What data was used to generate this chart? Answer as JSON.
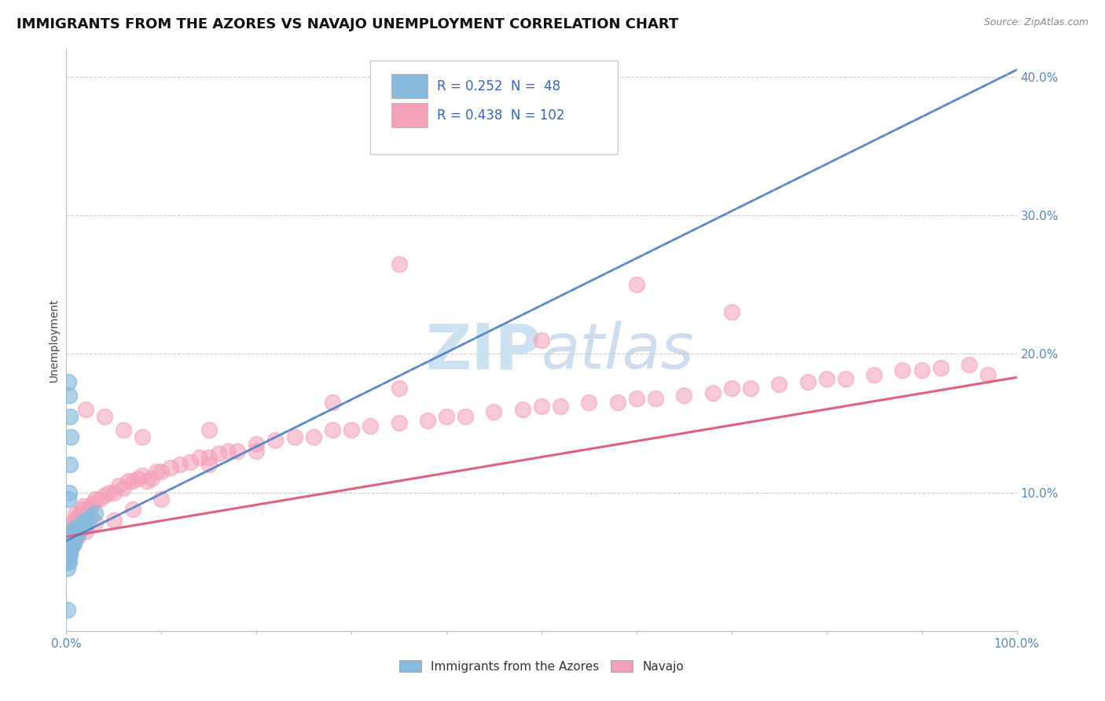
{
  "title": "IMMIGRANTS FROM THE AZORES VS NAVAJO UNEMPLOYMENT CORRELATION CHART",
  "source_text": "Source: ZipAtlas.com",
  "ylabel": "Unemployment",
  "xlim": [
    0,
    1.0
  ],
  "ylim": [
    0,
    0.42
  ],
  "x_ticks": [
    0.0,
    0.1,
    0.2,
    0.3,
    0.4,
    0.5,
    0.6,
    0.7,
    0.8,
    0.9,
    1.0
  ],
  "y_ticks": [
    0.0,
    0.1,
    0.2,
    0.3,
    0.4
  ],
  "blue_color": "#88bbdd",
  "pink_color": "#f4a0b8",
  "blue_line_color": "#4477bb",
  "pink_line_color": "#e06080",
  "dashed_line_color": "#aaccee",
  "background_color": "#ffffff",
  "grid_color": "#cccccc",
  "title_fontsize": 13,
  "axis_label_fontsize": 10,
  "tick_fontsize": 11,
  "legend_text1": "R = 0.252  N =  48",
  "legend_text2": "R = 0.438  N = 102",
  "blue_x": [
    0.001,
    0.001,
    0.001,
    0.001,
    0.002,
    0.002,
    0.002,
    0.002,
    0.002,
    0.003,
    0.003,
    0.003,
    0.003,
    0.003,
    0.004,
    0.004,
    0.004,
    0.004,
    0.005,
    0.005,
    0.005,
    0.006,
    0.006,
    0.007,
    0.007,
    0.008,
    0.008,
    0.009,
    0.01,
    0.01,
    0.011,
    0.012,
    0.013,
    0.015,
    0.017,
    0.018,
    0.02,
    0.022,
    0.025,
    0.03,
    0.002,
    0.003,
    0.004,
    0.005,
    0.004,
    0.003,
    0.002,
    0.001
  ],
  "blue_y": [
    0.06,
    0.055,
    0.05,
    0.045,
    0.065,
    0.06,
    0.055,
    0.05,
    0.07,
    0.065,
    0.06,
    0.058,
    0.055,
    0.05,
    0.065,
    0.062,
    0.058,
    0.055,
    0.07,
    0.065,
    0.06,
    0.068,
    0.062,
    0.072,
    0.065,
    0.07,
    0.063,
    0.068,
    0.075,
    0.068,
    0.072,
    0.07,
    0.072,
    0.075,
    0.078,
    0.075,
    0.08,
    0.078,
    0.082,
    0.085,
    0.18,
    0.17,
    0.155,
    0.14,
    0.12,
    0.1,
    0.095,
    0.015
  ],
  "pink_x": [
    0.002,
    0.003,
    0.003,
    0.004,
    0.004,
    0.005,
    0.005,
    0.006,
    0.006,
    0.007,
    0.007,
    0.008,
    0.008,
    0.009,
    0.01,
    0.01,
    0.011,
    0.012,
    0.013,
    0.015,
    0.016,
    0.017,
    0.018,
    0.02,
    0.022,
    0.025,
    0.028,
    0.03,
    0.035,
    0.04,
    0.045,
    0.05,
    0.055,
    0.06,
    0.065,
    0.07,
    0.075,
    0.08,
    0.085,
    0.09,
    0.095,
    0.1,
    0.11,
    0.12,
    0.13,
    0.14,
    0.15,
    0.16,
    0.17,
    0.18,
    0.2,
    0.22,
    0.24,
    0.26,
    0.28,
    0.3,
    0.32,
    0.35,
    0.38,
    0.4,
    0.42,
    0.45,
    0.48,
    0.5,
    0.52,
    0.55,
    0.58,
    0.6,
    0.62,
    0.65,
    0.68,
    0.7,
    0.72,
    0.75,
    0.78,
    0.8,
    0.82,
    0.85,
    0.88,
    0.9,
    0.92,
    0.95,
    0.97,
    0.008,
    0.012,
    0.02,
    0.03,
    0.05,
    0.07,
    0.1,
    0.15,
    0.2,
    0.35,
    0.04,
    0.06,
    0.08,
    0.15,
    0.28,
    0.35,
    0.5,
    0.6,
    0.7
  ],
  "pink_y": [
    0.06,
    0.055,
    0.065,
    0.058,
    0.068,
    0.062,
    0.072,
    0.065,
    0.075,
    0.068,
    0.078,
    0.07,
    0.08,
    0.072,
    0.075,
    0.085,
    0.078,
    0.082,
    0.08,
    0.085,
    0.088,
    0.082,
    0.09,
    0.16,
    0.085,
    0.09,
    0.092,
    0.095,
    0.095,
    0.098,
    0.1,
    0.1,
    0.105,
    0.103,
    0.108,
    0.108,
    0.11,
    0.112,
    0.108,
    0.11,
    0.115,
    0.115,
    0.118,
    0.12,
    0.122,
    0.125,
    0.125,
    0.128,
    0.13,
    0.13,
    0.135,
    0.138,
    0.14,
    0.14,
    0.145,
    0.145,
    0.148,
    0.15,
    0.152,
    0.155,
    0.155,
    0.158,
    0.16,
    0.162,
    0.162,
    0.165,
    0.165,
    0.168,
    0.168,
    0.17,
    0.172,
    0.175,
    0.175,
    0.178,
    0.18,
    0.182,
    0.182,
    0.185,
    0.188,
    0.188,
    0.19,
    0.192,
    0.185,
    0.065,
    0.068,
    0.072,
    0.078,
    0.08,
    0.088,
    0.095,
    0.12,
    0.13,
    0.175,
    0.155,
    0.145,
    0.14,
    0.145,
    0.165,
    0.265,
    0.21,
    0.25,
    0.23
  ]
}
